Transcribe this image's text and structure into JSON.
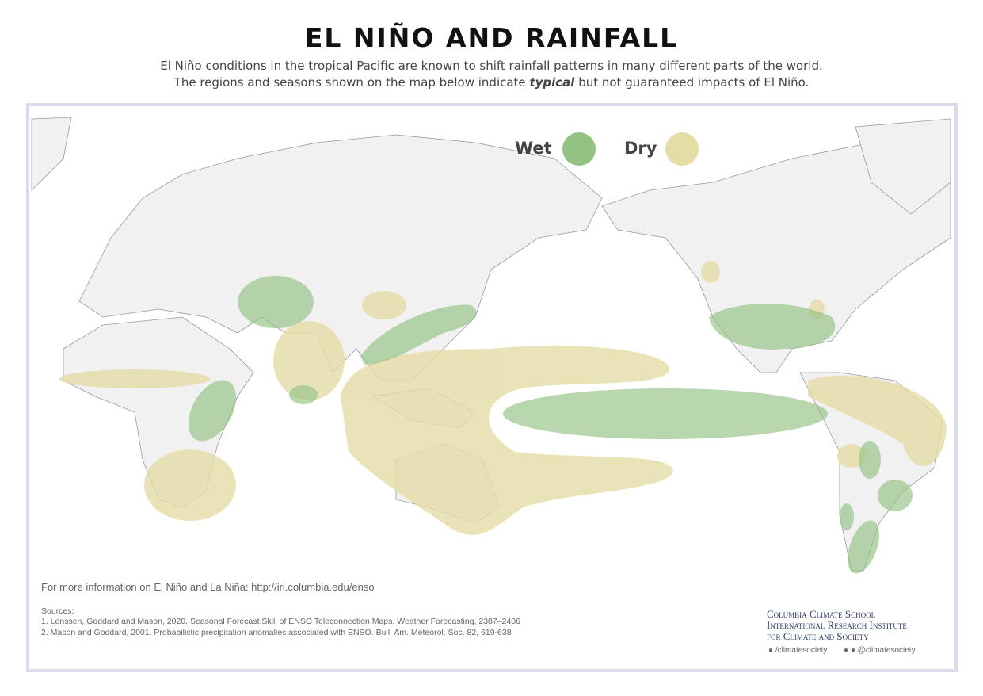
{
  "header": {
    "title": "EL NIÑO AND RAINFALL",
    "subtitle_line1": "El Niño conditions in the tropical Pacific are known to shift rainfall patterns in many different parts of the world.",
    "subtitle_line2": {
      "before": "The regions and seasons shown on the map below indicate ",
      "emphasis": "typical",
      "after": " but not guaranteed impacts of El Niño."
    }
  },
  "legend": {
    "wet": "Wet",
    "dry": "Dry"
  },
  "footer": {
    "info": "For more information on El Niño and La Niña: http://iri.columbia.edu/enso",
    "sources_label": "Sources:",
    "sources": [
      "1. Lenssen, Goddard and Mason, 2020. Seasonal Forecast Skill of ENSO Teleconnection Maps. Weather Forecasting, 2387–2406",
      "2. Mason and Goddard, 2001. Probabilistic precipitation anomalies associated with ENSO. Bull. Am. Meteorol. Soc. 82, 619-638"
    ],
    "org": [
      "Columbia Climate School",
      "International Research Institute",
      "for Climate and Society"
    ],
    "social": [
      "/climatesociety",
      "@climatesociety"
    ]
  }
}
